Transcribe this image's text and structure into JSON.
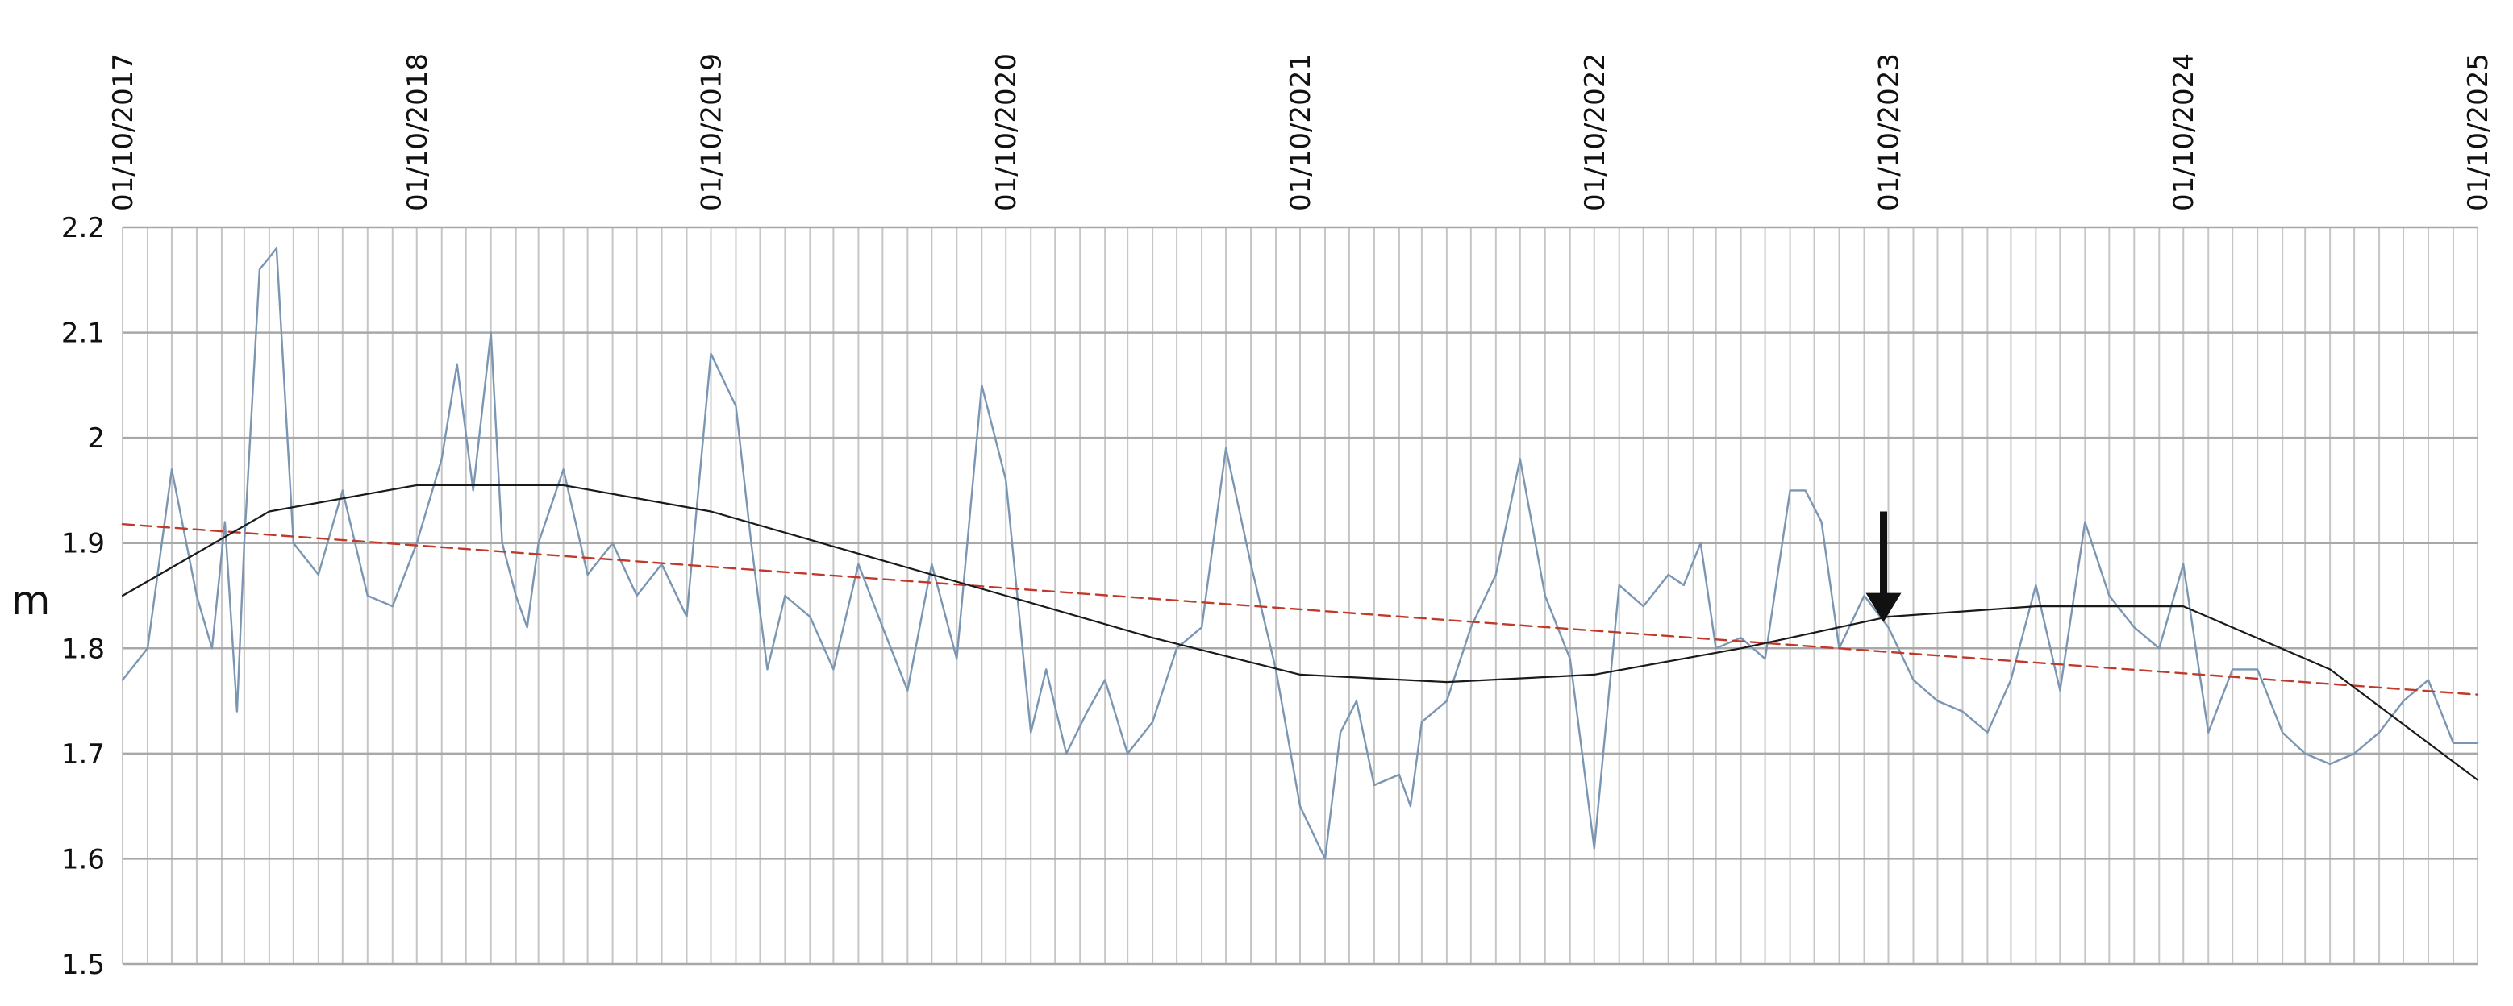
{
  "chart_data": {
    "type": "line",
    "title": "",
    "xlabel": "",
    "ylabel": "m",
    "ylim": [
      1.5,
      2.2
    ],
    "yticks": [
      2.2,
      2.1,
      2,
      1.9,
      1.8,
      1.7,
      1.6,
      1.5
    ],
    "y_tick_labels": [
      "2.2",
      "2.1",
      "2",
      "1.9",
      "1.8",
      "1.7",
      "1.6",
      "1.5"
    ],
    "xlim": [
      "2017-10-01",
      "2025-10-01"
    ],
    "x_tick_labels": [
      "01/10/2017",
      "01/10/2018",
      "01/10/2019",
      "01/10/2020",
      "01/10/2021",
      "01/10/2022",
      "01/10/2023",
      "01/10/2024",
      "01/10/2025"
    ],
    "x_tick_dates": [
      "2017-10-01",
      "2018-10-01",
      "2019-10-01",
      "2020-10-01",
      "2021-10-01",
      "2022-10-01",
      "2023-10-01",
      "2024-10-01",
      "2025-10-01"
    ],
    "grid": "vertical lines about monthly, horizontal lines at 0.1 m",
    "legend": "none",
    "series": [
      {
        "color": "#7a96b3",
        "style": "raw",
        "x": [
          "2017-10-01",
          "2017-11-01",
          "2017-12-01",
          "2018-01-01",
          "2018-01-20",
          "2018-02-05",
          "2018-02-20",
          "2018-03-01",
          "2018-03-20",
          "2018-04-10",
          "2018-05-01",
          "2018-06-01",
          "2018-07-01",
          "2018-08-01",
          "2018-09-01",
          "2018-10-01",
          "2018-11-01",
          "2018-11-20",
          "2018-12-10",
          "2019-01-01",
          "2019-01-15",
          "2019-02-01",
          "2019-02-15",
          "2019-03-01",
          "2019-04-01",
          "2019-05-01",
          "2019-06-01",
          "2019-07-01",
          "2019-08-01",
          "2019-09-01",
          "2019-10-01",
          "2019-11-01",
          "2019-11-20",
          "2019-12-10",
          "2020-01-01",
          "2020-02-01",
          "2020-03-01",
          "2020-04-01",
          "2020-05-01",
          "2020-06-01",
          "2020-07-01",
          "2020-08-01",
          "2020-09-01",
          "2020-10-01",
          "2020-11-01",
          "2020-11-20",
          "2020-12-15",
          "2021-01-10",
          "2021-02-01",
          "2021-03-01",
          "2021-04-01",
          "2021-05-01",
          "2021-06-01",
          "2021-07-01",
          "2021-08-01",
          "2021-09-01",
          "2021-10-01",
          "2021-11-01",
          "2021-11-20",
          "2021-12-10",
          "2022-01-01",
          "2022-02-01",
          "2022-02-15",
          "2022-03-01",
          "2022-04-01",
          "2022-05-01",
          "2022-06-01",
          "2022-07-01",
          "2022-08-01",
          "2022-09-01",
          "2022-10-01",
          "2022-11-01",
          "2022-12-01",
          "2023-01-01",
          "2023-01-20",
          "2023-02-10",
          "2023-03-01",
          "2023-04-01",
          "2023-05-01",
          "2023-06-01",
          "2023-06-20",
          "2023-07-10",
          "2023-08-01",
          "2023-09-01",
          "2023-10-01",
          "2023-11-01",
          "2023-12-01",
          "2024-01-01",
          "2024-02-01",
          "2024-03-01",
          "2024-04-01",
          "2024-05-01",
          "2024-06-01",
          "2024-07-01",
          "2024-08-01",
          "2024-09-01",
          "2024-10-01",
          "2024-11-01",
          "2024-12-01",
          "2025-01-01",
          "2025-02-01",
          "2025-03-01",
          "2025-04-01",
          "2025-05-01",
          "2025-06-01",
          "2025-07-01",
          "2025-08-01",
          "2025-09-01",
          "2025-10-01"
        ],
        "y": [
          1.77,
          1.8,
          1.97,
          1.85,
          1.8,
          1.92,
          1.74,
          1.9,
          2.16,
          2.18,
          1.9,
          1.87,
          1.95,
          1.85,
          1.84,
          1.9,
          1.98,
          2.07,
          1.95,
          2.1,
          1.9,
          1.85,
          1.82,
          1.9,
          1.97,
          1.87,
          1.9,
          1.85,
          1.88,
          1.83,
          2.08,
          2.03,
          1.9,
          1.78,
          1.85,
          1.83,
          1.78,
          1.88,
          1.82,
          1.76,
          1.88,
          1.79,
          2.05,
          1.96,
          1.72,
          1.78,
          1.7,
          1.74,
          1.77,
          1.7,
          1.73,
          1.8,
          1.82,
          1.99,
          1.88,
          1.78,
          1.65,
          1.6,
          1.72,
          1.75,
          1.67,
          1.68,
          1.65,
          1.73,
          1.75,
          1.82,
          1.87,
          1.98,
          1.85,
          1.79,
          1.61,
          1.86,
          1.84,
          1.87,
          1.86,
          1.9,
          1.8,
          1.81,
          1.79,
          1.95,
          1.95,
          1.92,
          1.8,
          1.85,
          1.82,
          1.77,
          1.75,
          1.74,
          1.72,
          1.77,
          1.86,
          1.76,
          1.92,
          1.85,
          1.82,
          1.8,
          1.88,
          1.72,
          1.78,
          1.78,
          1.72,
          1.7,
          1.69,
          1.7,
          1.72,
          1.75,
          1.77,
          1.71,
          1.71
        ]
      },
      {
        "color": "#c0392b",
        "style": "linear-trend-dashed",
        "x": [
          "2017-10-01",
          "2025-10-01"
        ],
        "y": [
          1.918,
          1.756
        ]
      },
      {
        "color": "#1a1a1a",
        "style": "polynomial-trend",
        "x": [
          "2017-10-01",
          "2018-04-01",
          "2018-10-01",
          "2019-04-01",
          "2019-10-01",
          "2020-04-01",
          "2020-10-01",
          "2021-04-01",
          "2021-10-01",
          "2022-04-01",
          "2022-10-01",
          "2023-04-01",
          "2023-10-01",
          "2024-04-01",
          "2024-10-01",
          "2025-04-01",
          "2025-10-01"
        ],
        "y": [
          1.85,
          1.93,
          1.955,
          1.955,
          1.93,
          1.89,
          1.85,
          1.81,
          1.775,
          1.768,
          1.775,
          1.8,
          1.83,
          1.84,
          1.84,
          1.78,
          1.675
        ]
      }
    ],
    "annotations": [
      {
        "type": "arrow-down",
        "color": "#111111",
        "x": "2023-09-25",
        "y_top": 1.93,
        "y_tip": 1.825
      }
    ]
  }
}
